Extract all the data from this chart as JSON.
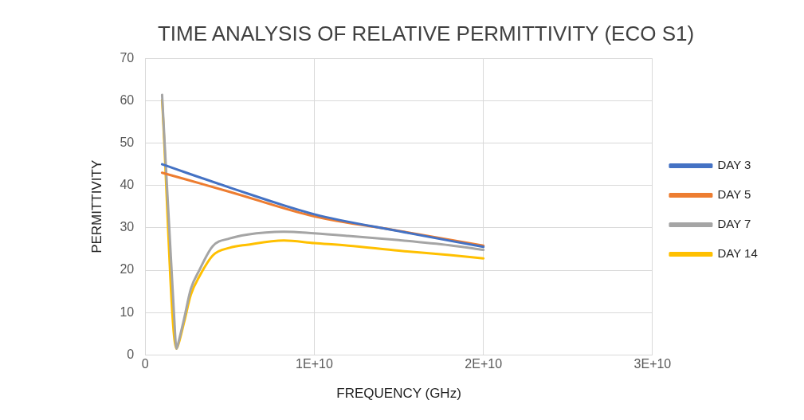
{
  "chart_data": {
    "type": "line",
    "title": "TIME ANALYSIS OF RELATIVE PERMITTIVITY (ECO S1)",
    "xlabel": "FREQUENCY (GHz)",
    "ylabel": "PERMITTIVITY",
    "xlim": [
      0,
      30000000000
    ],
    "xticks": [
      0,
      {
        "value": 10000000000,
        "label": "1E+10"
      },
      {
        "value": 20000000000,
        "label": "2E+10"
      },
      {
        "value": 30000000000,
        "label": "3E+10"
      }
    ],
    "ylim": [
      0,
      70
    ],
    "yticks": [
      0,
      10,
      20,
      30,
      40,
      50,
      60,
      70
    ],
    "grid": true,
    "legend": "right",
    "marker": "none",
    "line_style": "solid",
    "series": [
      {
        "name": "DAY 3",
        "color": "#4472c4",
        "x": [
          1000000000,
          5000000000,
          10000000000,
          15000000000,
          20000000000
        ],
        "values": [
          45,
          39.5,
          33.2,
          29.2,
          25.5
        ]
      },
      {
        "name": "DAY 5",
        "color": "#ed7d31",
        "x": [
          1000000000,
          5000000000,
          10000000000,
          15000000000,
          20000000000
        ],
        "values": [
          43,
          38.5,
          32.7,
          29.3,
          25.8
        ]
      },
      {
        "name": "DAY 7",
        "color": "#a5a5a5",
        "x": [
          1000000000,
          1700000000,
          1850000000,
          2000000000,
          2300000000,
          2700000000,
          3200000000,
          4000000000,
          5000000000,
          6000000000,
          8200000000,
          10000000000,
          12000000000,
          15000000000,
          18000000000,
          20000000000
        ],
        "values": [
          61.4,
          10,
          1.5,
          3.5,
          8.5,
          15.6,
          20,
          25.7,
          27.5,
          28.4,
          29.1,
          28.7,
          28.1,
          27.1,
          25.9,
          24.8
        ]
      },
      {
        "name": "DAY 14",
        "color": "#ffc000",
        "x": [
          1000000000,
          1850000000,
          2000000000,
          2300000000,
          2700000000,
          3200000000,
          4000000000,
          5000000000,
          6000000000,
          8200000000,
          10000000000,
          12000000000,
          15000000000,
          18000000000,
          20000000000
        ],
        "values": [
          60.2,
          1.5,
          3,
          7.7,
          14.2,
          18.5,
          23.5,
          25.3,
          26,
          27,
          26.4,
          25.8,
          24.6,
          23.6,
          22.8
        ]
      }
    ]
  }
}
